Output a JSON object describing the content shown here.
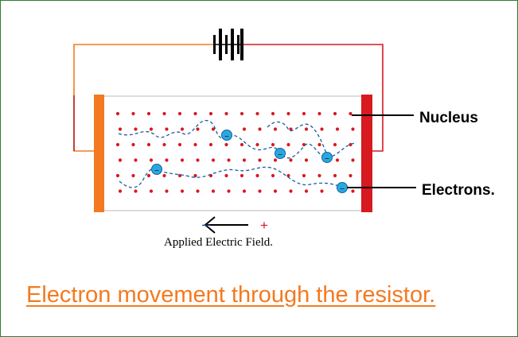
{
  "labels": {
    "nucleus": "Nucleus",
    "electrons": "Electrons.",
    "field_caption": "Applied Electric Field.",
    "minus_sign": "–",
    "plus_sign": "+",
    "electron_symbol": "–"
  },
  "title": "Electron movement through the resistor.",
  "colors": {
    "border": "#2e7d32",
    "wire_left": "#f37a20",
    "wire_right": "#d71920",
    "nucleus": "#d71920",
    "electron_fill": "#29a8e0",
    "electron_stroke": "#1a5f9c",
    "path": "#1a5f9c",
    "title": "#f37a20"
  }
}
